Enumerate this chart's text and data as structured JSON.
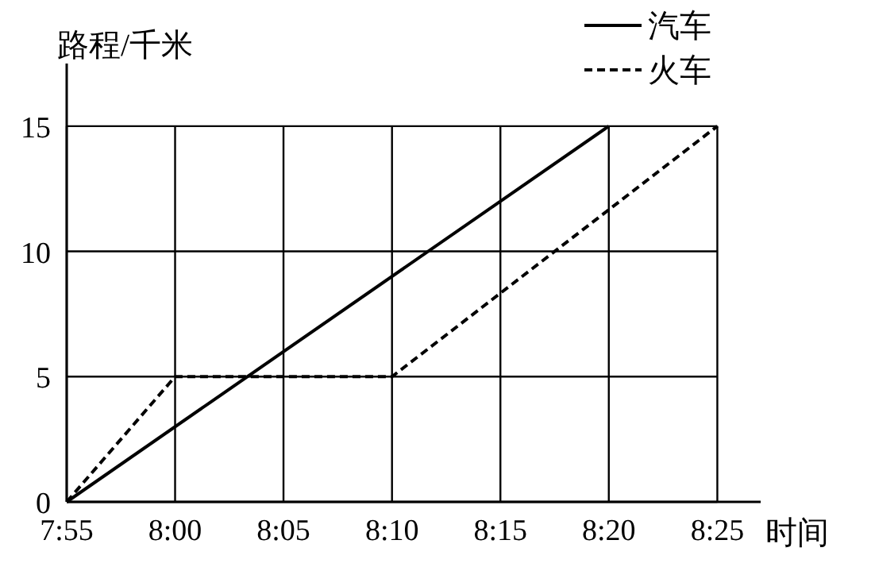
{
  "chart_data": {
    "type": "line",
    "xlabel": "时间",
    "ylabel": "路程/千米",
    "series": [
      {
        "name": "汽车",
        "color": "#000000",
        "line_style": "solid",
        "x": [
          7.9167,
          8.3333
        ],
        "values": [
          0,
          15
        ]
      },
      {
        "name": "火车",
        "color": "#000000",
        "line_style": "dashed",
        "x": [
          7.9167,
          8,
          8.1667,
          8.4167
        ],
        "values": [
          0,
          5,
          5,
          15
        ]
      }
    ],
    "xlim": [
      7.9167,
      8.45
    ],
    "xticks": [
      {
        "value": 7.9167,
        "label": "7:55"
      },
      {
        "value": 8,
        "label": "8:00"
      },
      {
        "value": 8.0833,
        "label": "8:05"
      },
      {
        "value": 8.1667,
        "label": "8:10"
      },
      {
        "value": 8.25,
        "label": "8:15"
      },
      {
        "value": 8.3333,
        "label": "8:20"
      },
      {
        "value": 8.4167,
        "label": "8:25"
      }
    ],
    "ylim": [
      0,
      17.5
    ],
    "yticks": [
      0,
      5,
      10,
      15
    ],
    "grid": true,
    "legend": "top right",
    "marker": "none"
  }
}
